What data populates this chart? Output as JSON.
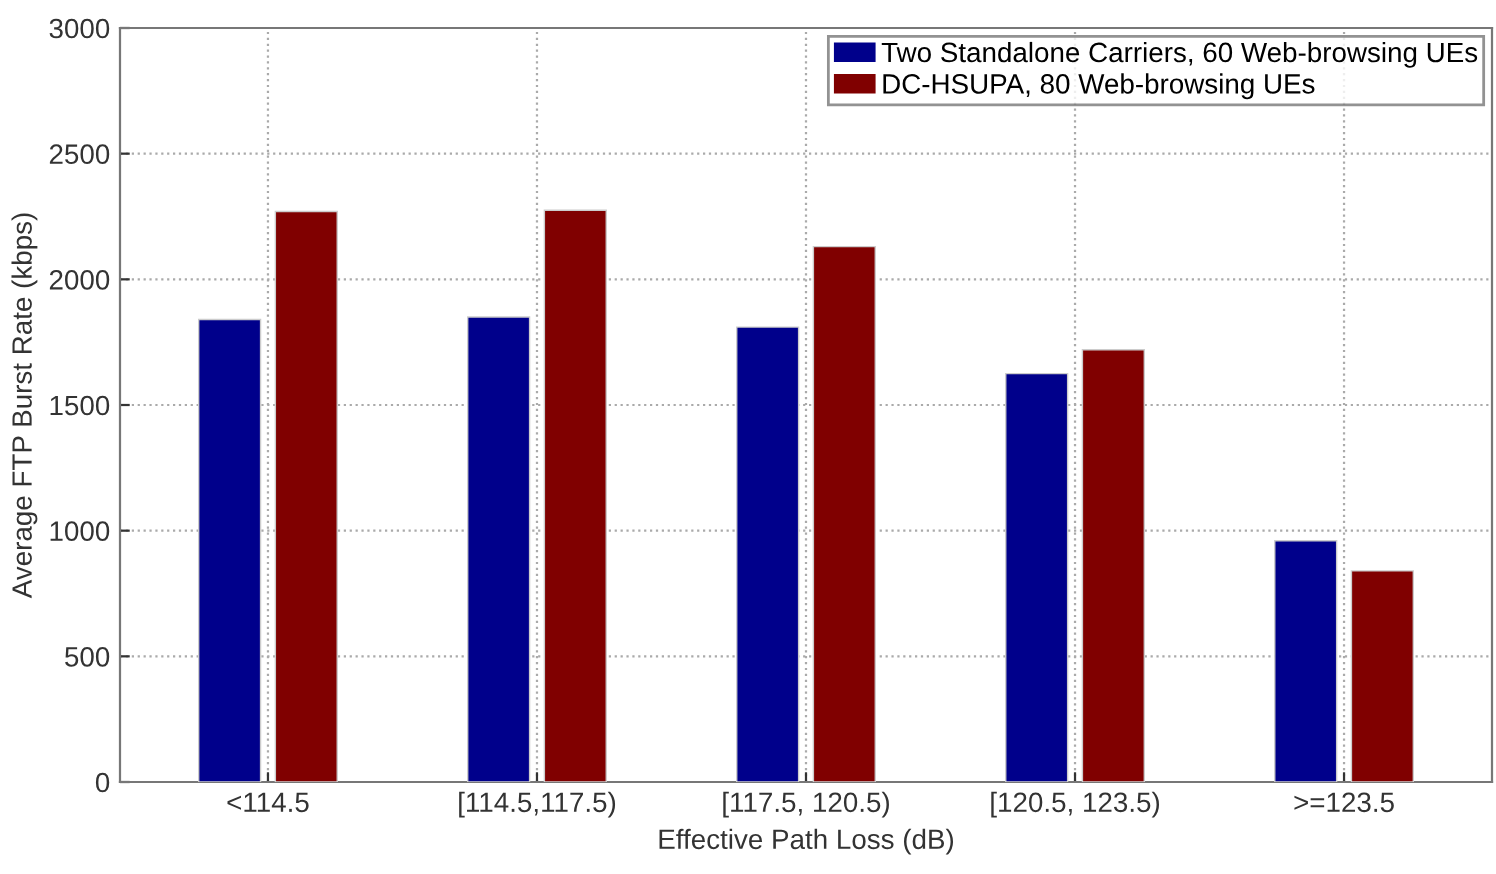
{
  "chart_data": {
    "type": "bar",
    "xlabel": "Effective Path Loss (dB)",
    "ylabel": "Average FTP Burst Rate (kbps)",
    "categories": [
      "<114.5",
      "[114.5,117.5)",
      "[117.5, 120.5)",
      "[120.5, 123.5)",
      ">=123.5"
    ],
    "series": [
      {
        "name": "Two Standalone Carriers, 60 Web-browsing UEs",
        "color": "#00008b",
        "values": [
          1840,
          1850,
          1810,
          1625,
          960
        ]
      },
      {
        "name": "DC-HSUPA, 80 Web-browsing UEs",
        "color": "#800000",
        "values": [
          2270,
          2275,
          2130,
          1720,
          840
        ]
      }
    ],
    "ylim": [
      0,
      3000
    ],
    "yticks": [
      0,
      500,
      1000,
      1500,
      2000,
      2500,
      3000
    ],
    "grid": true,
    "legend": "top right"
  }
}
